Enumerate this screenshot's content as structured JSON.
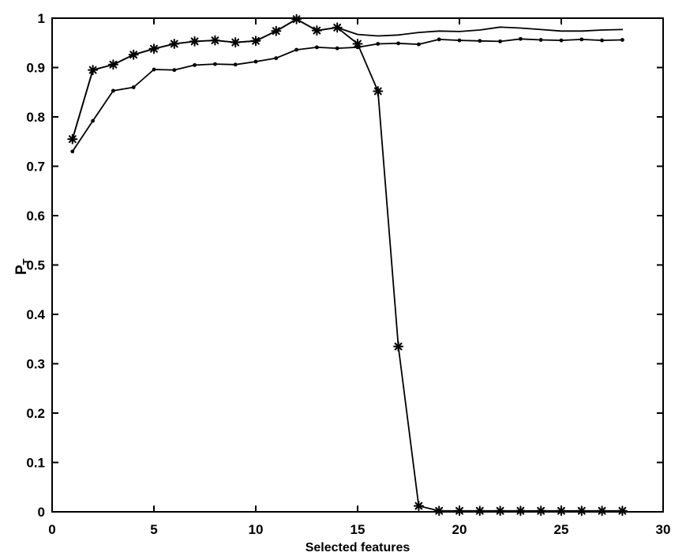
{
  "figure": {
    "background": "#ffffff",
    "ink_color": "#000000"
  },
  "chart_data": {
    "type": "line",
    "title": "",
    "xlabel": "Selected features",
    "ylabel": "P_T",
    "ylabel_main": "P",
    "ylabel_sub": "T",
    "xlim": [
      0,
      30
    ],
    "ylim": [
      0,
      1
    ],
    "grid": false,
    "legend": null,
    "box": true,
    "xticks": {
      "values": [
        0,
        5,
        10,
        15,
        20,
        25,
        30
      ],
      "labels": [
        "0",
        "5",
        "10",
        "15",
        "20",
        "25",
        "30"
      ]
    },
    "yticks": {
      "values": [
        0,
        0.1,
        0.2,
        0.3,
        0.4,
        0.5,
        0.6,
        0.7,
        0.8,
        0.9,
        1
      ],
      "labels": [
        "0",
        "0.1",
        "0.2",
        "0.3",
        "0.4",
        "0.5",
        "0.6",
        "0.7",
        "0.8",
        "0.9",
        "1"
      ]
    },
    "x": [
      1,
      2,
      3,
      4,
      5,
      6,
      7,
      8,
      9,
      10,
      11,
      12,
      13,
      14,
      15,
      16,
      17,
      18,
      19,
      20,
      21,
      22,
      23,
      24,
      25,
      26,
      27,
      28
    ],
    "series": [
      {
        "name": "upper-solid-line-no-marker",
        "marker": "none",
        "color": "#000000",
        "values": [
          0.755,
          0.895,
          0.906,
          0.926,
          0.938,
          0.948,
          0.953,
          0.955,
          0.951,
          0.954,
          0.974,
          0.998,
          0.975,
          0.981,
          0.967,
          0.964,
          0.966,
          0.971,
          0.974,
          0.973,
          0.976,
          0.982,
          0.98,
          0.977,
          0.974,
          0.974,
          0.976,
          0.977
        ]
      },
      {
        "name": "dot-marker-line",
        "marker": "dot",
        "color": "#000000",
        "values": [
          0.73,
          0.792,
          0.853,
          0.86,
          0.896,
          0.895,
          0.905,
          0.907,
          0.906,
          0.912,
          0.919,
          0.936,
          0.941,
          0.939,
          0.941,
          0.948,
          0.949,
          0.947,
          0.957,
          0.955,
          0.954,
          0.953,
          0.958,
          0.956,
          0.955,
          0.957,
          0.955,
          0.956
        ]
      },
      {
        "name": "asterisk-marker-line",
        "marker": "asterisk",
        "color": "#000000",
        "values": [
          0.755,
          0.895,
          0.906,
          0.926,
          0.938,
          0.948,
          0.953,
          0.955,
          0.951,
          0.954,
          0.974,
          0.998,
          0.975,
          0.981,
          0.948,
          0.852,
          0.335,
          0.012,
          0.002,
          0.002,
          0.002,
          0.002,
          0.002,
          0.002,
          0.002,
          0.002,
          0.002,
          0.002
        ]
      }
    ]
  }
}
